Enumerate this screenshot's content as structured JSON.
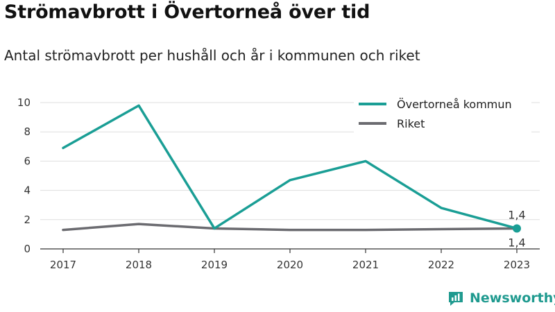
{
  "title": "Strömavbrott i Övertorneå över tid",
  "subtitle": "Antal strömavbrott per hushåll och år i kommunen och riket",
  "brand": {
    "name": "Newsworthy",
    "color": "#1f9a8f"
  },
  "chart_data": {
    "type": "line",
    "x": [
      "2017",
      "2018",
      "2019",
      "2020",
      "2021",
      "2022",
      "2023"
    ],
    "ylim": [
      0,
      10
    ],
    "yticks": [
      0,
      2,
      4,
      6,
      8,
      10
    ],
    "grid": true,
    "legend_position": "top-right",
    "series": [
      {
        "name": "Övertorneå kommun",
        "color": "#1a9e95",
        "values": [
          6.9,
          9.8,
          1.4,
          4.7,
          6.0,
          2.8,
          1.4
        ]
      },
      {
        "name": "Riket",
        "color": "#6b6b70",
        "values": [
          1.3,
          1.7,
          1.4,
          1.3,
          1.3,
          1.35,
          1.4
        ]
      }
    ],
    "annotations": [
      {
        "series": 0,
        "index": 6,
        "text": "1,4",
        "position": "above"
      },
      {
        "series": 1,
        "index": 6,
        "text": "1,4",
        "position": "below"
      }
    ]
  }
}
